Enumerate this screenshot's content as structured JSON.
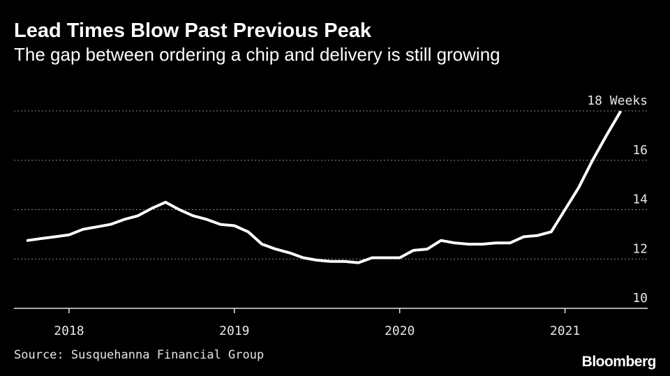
{
  "title": "Lead Times Blow Past Previous Peak",
  "subtitle": "The gap between ordering a chip and delivery is still growing",
  "source": "Source: Susquehanna Financial Group",
  "brand": "Bloomberg",
  "colors": {
    "background": "#000000",
    "line": "#ffffff",
    "grid": "#8c8c8c",
    "text": "#e6e6e6"
  },
  "chart_data": {
    "type": "line",
    "title": "Lead Times Blow Past Previous Peak",
    "subtitle": "The gap between ordering a chip and delivery is still growing",
    "ylim": [
      10,
      18
    ],
    "y_ticks": [
      {
        "value": 10,
        "label": "10"
      },
      {
        "value": 12,
        "label": "12"
      },
      {
        "value": 14,
        "label": "14"
      },
      {
        "value": 16,
        "label": "16"
      },
      {
        "value": 18,
        "label": "18 Weeks"
      }
    ],
    "x_ticks": [
      {
        "value": "2018-01",
        "label": "2018"
      },
      {
        "value": "2019-01",
        "label": "2019"
      },
      {
        "value": "2020-01",
        "label": "2020"
      },
      {
        "value": "2021-01",
        "label": "2021"
      }
    ],
    "xlim": [
      "2017-09",
      "2021-07"
    ],
    "grid": true,
    "y_axis_side": "right",
    "series": [
      {
        "x": [
          "2017-10",
          "2017-11",
          "2017-12",
          "2018-01",
          "2018-02",
          "2018-03",
          "2018-04",
          "2018-05",
          "2018-06",
          "2018-07",
          "2018-08",
          "2018-09",
          "2018-10",
          "2018-11",
          "2018-12",
          "2019-01",
          "2019-02",
          "2019-03",
          "2019-04",
          "2019-05",
          "2019-06",
          "2019-07",
          "2019-08",
          "2019-09",
          "2019-10",
          "2019-11",
          "2019-12",
          "2020-01",
          "2020-02",
          "2020-03",
          "2020-04",
          "2020-05",
          "2020-06",
          "2020-07",
          "2020-08",
          "2020-09",
          "2020-10",
          "2020-11",
          "2020-12",
          "2021-01",
          "2021-02",
          "2021-03",
          "2021-04",
          "2021-05"
        ],
        "y": [
          12.75,
          12.83,
          12.9,
          12.98,
          13.2,
          13.3,
          13.4,
          13.6,
          13.75,
          14.05,
          14.3,
          14.0,
          13.75,
          13.6,
          13.4,
          13.35,
          13.1,
          12.6,
          12.4,
          12.25,
          12.05,
          11.95,
          11.9,
          11.9,
          11.85,
          12.05,
          12.05,
          12.05,
          12.35,
          12.4,
          12.75,
          12.65,
          12.6,
          12.6,
          12.65,
          12.65,
          12.9,
          12.95,
          13.1,
          14.0,
          14.9,
          16.0,
          17.0,
          17.95
        ]
      }
    ]
  }
}
